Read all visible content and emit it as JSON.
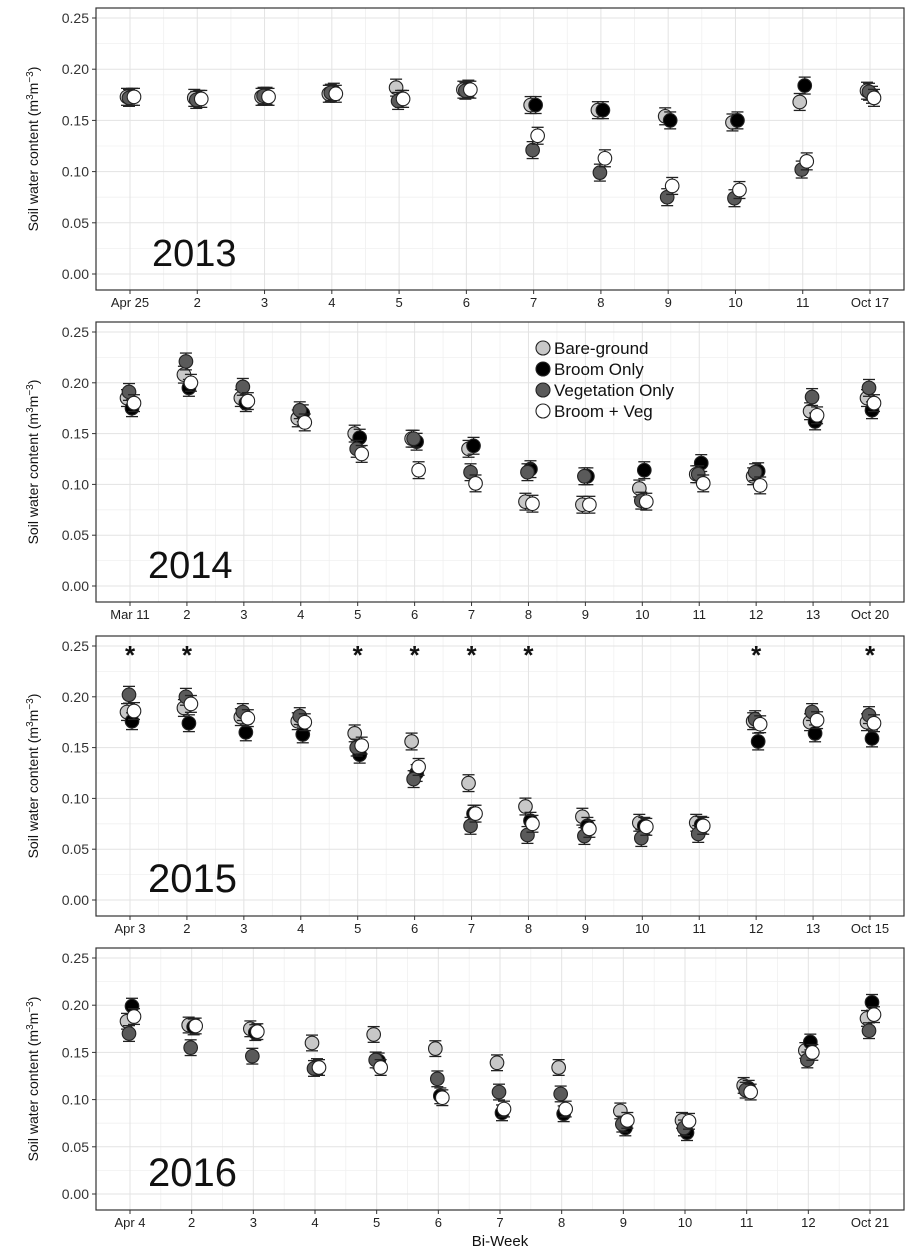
{
  "figure": {
    "xlabel": "Bi-Week",
    "ylabel_main": "Soil water content (m",
    "ylabel_sup1": "3",
    "ylabel_mid": "m",
    "ylabel_sup2": "−3",
    "ylabel_end": ")"
  },
  "legend": {
    "placement": "inside top of 2014 panel",
    "items": [
      {
        "label": "Bare-ground",
        "key": "bare"
      },
      {
        "label": "Broom Only",
        "key": "broom"
      },
      {
        "label": "Vegetation Only",
        "key": "veg"
      },
      {
        "label": "Broom + Veg",
        "key": "bv"
      }
    ]
  },
  "series_style": {
    "bare": {
      "fill": "#c8c8c8"
    },
    "broom": {
      "fill": "#000000"
    },
    "veg": {
      "fill": "#5a5a5a"
    },
    "bv": {
      "fill": "#ffffff"
    }
  },
  "chart_data": [
    {
      "type": "scatter",
      "title": "2013",
      "year_label": "2013",
      "ylim": [
        0,
        0.25
      ],
      "yticks": [
        "0.00",
        "0.05",
        "0.10",
        "0.15",
        "0.20",
        "0.25"
      ],
      "grid": true,
      "categories": [
        "Apr 25",
        "2",
        "3",
        "4",
        "5",
        "6",
        "7",
        "8",
        "9",
        "10",
        "11",
        "Oct 17"
      ],
      "significant": [],
      "series": [
        {
          "key": "bare",
          "name": "Bare-ground",
          "values": [
            0.173,
            0.172,
            0.173,
            0.176,
            0.182,
            0.18,
            0.165,
            0.16,
            0.154,
            0.148,
            0.168,
            0.179
          ]
        },
        {
          "key": "broom",
          "name": "Broom Only",
          "values": [
            0.173,
            0.171,
            0.174,
            0.178,
            0.171,
            0.181,
            0.165,
            0.16,
            0.15,
            0.15,
            0.184,
            0.175
          ]
        },
        {
          "key": "veg",
          "name": "Vegetation Only",
          "values": [
            0.172,
            0.17,
            0.174,
            0.177,
            0.169,
            0.179,
            0.121,
            0.099,
            0.075,
            0.074,
            0.102,
            0.178
          ]
        },
        {
          "key": "bv",
          "name": "Broom + Veg",
          "values": [
            0.173,
            0.171,
            0.173,
            0.176,
            0.171,
            0.18,
            0.135,
            0.113,
            0.086,
            0.082,
            0.11,
            0.172
          ]
        }
      ]
    },
    {
      "type": "scatter",
      "title": "2014",
      "year_label": "2014",
      "ylim": [
        0,
        0.25
      ],
      "yticks": [
        "0.00",
        "0.05",
        "0.10",
        "0.15",
        "0.20",
        "0.25"
      ],
      "grid": true,
      "categories": [
        "Mar 11",
        "2",
        "3",
        "4",
        "5",
        "6",
        "7",
        "8",
        "9",
        "10",
        "11",
        "12",
        "13",
        "Oct 20"
      ],
      "significant": [],
      "series": [
        {
          "key": "bare",
          "name": "Bare-ground",
          "values": [
            0.185,
            0.208,
            0.185,
            0.165,
            0.15,
            0.145,
            0.135,
            0.083,
            0.08,
            0.096,
            0.11,
            0.108,
            0.172,
            0.185
          ]
        },
        {
          "key": "broom",
          "name": "Broom Only",
          "values": [
            0.175,
            0.195,
            0.18,
            0.17,
            0.146,
            0.142,
            0.138,
            0.115,
            0.108,
            0.114,
            0.121,
            0.113,
            0.162,
            0.173
          ]
        },
        {
          "key": "veg",
          "name": "Vegetation Only",
          "values": [
            0.191,
            0.221,
            0.196,
            0.173,
            0.135,
            0.145,
            0.112,
            0.112,
            0.108,
            0.084,
            0.11,
            0.112,
            0.186,
            0.195
          ]
        },
        {
          "key": "bv",
          "name": "Broom + Veg",
          "values": [
            0.18,
            0.2,
            0.182,
            0.161,
            0.13,
            0.114,
            0.101,
            0.081,
            0.08,
            0.083,
            0.101,
            0.099,
            0.168,
            0.18
          ]
        }
      ]
    },
    {
      "type": "scatter",
      "title": "2015",
      "year_label": "2015",
      "ylim": [
        0,
        0.25
      ],
      "yticks": [
        "0.00",
        "0.05",
        "0.10",
        "0.15",
        "0.20",
        "0.25"
      ],
      "grid": true,
      "categories": [
        "Apr 3",
        "2",
        "3",
        "4",
        "5",
        "6",
        "7",
        "8",
        "9",
        "10",
        "11",
        "12",
        "13",
        "Oct 15"
      ],
      "significant": [
        0,
        1,
        4,
        5,
        6,
        7,
        11,
        13
      ],
      "significant_marker": "*",
      "series": [
        {
          "key": "bare",
          "name": "Bare-ground",
          "values": [
            0.185,
            0.189,
            0.18,
            0.176,
            0.164,
            0.156,
            0.115,
            0.092,
            0.082,
            0.076,
            0.076,
            0.176,
            0.175,
            0.175
          ]
        },
        {
          "key": "broom",
          "name": "Broom Only",
          "values": [
            0.176,
            0.174,
            0.165,
            0.163,
            0.143,
            0.125,
            0.085,
            0.078,
            0.073,
            0.073,
            0.074,
            0.156,
            0.164,
            0.159
          ]
        },
        {
          "key": "veg",
          "name": "Vegetation Only",
          "values": [
            0.202,
            0.2,
            0.185,
            0.181,
            0.15,
            0.119,
            0.073,
            0.064,
            0.063,
            0.061,
            0.065,
            0.178,
            0.185,
            0.182
          ]
        },
        {
          "key": "bv",
          "name": "Broom + Veg",
          "values": [
            0.186,
            0.193,
            0.179,
            0.175,
            0.152,
            0.131,
            0.085,
            0.075,
            0.07,
            0.072,
            0.073,
            0.173,
            0.177,
            0.174
          ]
        }
      ]
    },
    {
      "type": "scatter",
      "title": "2016",
      "year_label": "2016",
      "ylim": [
        0,
        0.25
      ],
      "yticks": [
        "0.00",
        "0.05",
        "0.10",
        "0.15",
        "0.20",
        "0.25"
      ],
      "grid": true,
      "categories": [
        "Apr 4",
        "2",
        "3",
        "4",
        "5",
        "6",
        "7",
        "8",
        "9",
        "10",
        "11",
        "12",
        "Oct 21"
      ],
      "significant": [],
      "series": [
        {
          "key": "bare",
          "name": "Bare-ground",
          "values": [
            0.183,
            0.179,
            0.175,
            0.16,
            0.169,
            0.154,
            0.139,
            0.134,
            0.088,
            0.078,
            0.115,
            0.152,
            0.186
          ]
        },
        {
          "key": "broom",
          "name": "Broom Only",
          "values": [
            0.199,
            0.177,
            0.171,
            0.135,
            0.141,
            0.104,
            0.086,
            0.085,
            0.07,
            0.065,
            0.112,
            0.161,
            0.203
          ]
        },
        {
          "key": "veg",
          "name": "Vegetation Only",
          "values": [
            0.17,
            0.155,
            0.146,
            0.133,
            0.142,
            0.122,
            0.108,
            0.106,
            0.074,
            0.07,
            0.11,
            0.142,
            0.173
          ]
        },
        {
          "key": "bv",
          "name": "Broom + Veg",
          "values": [
            0.188,
            0.178,
            0.172,
            0.134,
            0.134,
            0.102,
            0.09,
            0.09,
            0.078,
            0.077,
            0.108,
            0.15,
            0.19
          ]
        }
      ]
    }
  ]
}
